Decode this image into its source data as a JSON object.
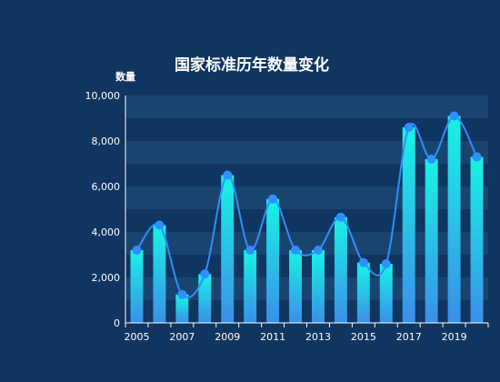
{
  "chart_data": {
    "type": "bar",
    "title": "国家标准历年数量变化",
    "ylabel": "数量",
    "xlabel": "",
    "categories": [
      "2005",
      "2006",
      "2007",
      "2008",
      "2009",
      "2010",
      "2011",
      "2012",
      "2013",
      "2014",
      "2015",
      "2016",
      "2017",
      "2018",
      "2019",
      "2020"
    ],
    "x_tick_labels": [
      "2005",
      "2007",
      "2009",
      "2011",
      "2013",
      "2015",
      "2017",
      "2019"
    ],
    "y_tick_labels": [
      "0",
      "2,000",
      "4,000",
      "6,000",
      "8,000",
      "10,000"
    ],
    "ylim": [
      0,
      10000
    ],
    "series": [
      {
        "values": [
          3200,
          4300,
          1250,
          2150,
          6500,
          3200,
          5450,
          3200,
          3200,
          4650,
          2650,
          2600,
          8600,
          7200,
          9100,
          7300
        ]
      }
    ],
    "overlay_line": {
      "type": "smooth-line",
      "values": [
        3200,
        4300,
        1250,
        2150,
        6500,
        3200,
        5450,
        3200,
        3200,
        4650,
        2650,
        2600,
        8600,
        7200,
        9100,
        7300
      ]
    },
    "grid": "horizontal-bands",
    "legend": "none",
    "colors": {
      "background": "#0f3560",
      "band_dark": "#1a4470",
      "bar_top": "#17f4e4",
      "bar_bottom": "#3b8fe9",
      "line": "#2e8fff",
      "marker": "#2e8fff",
      "text": "#ffffff"
    }
  }
}
